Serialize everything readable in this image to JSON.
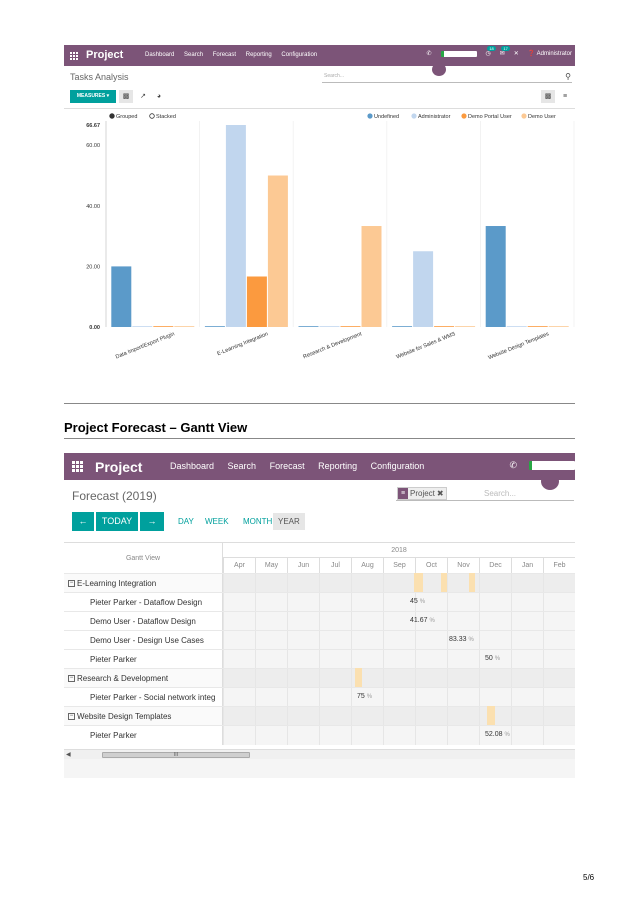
{
  "analysis": {
    "app_name": "Project",
    "nav": [
      "Dashboard",
      "Search",
      "Forecast",
      "Reporting",
      "Configuration"
    ],
    "user": "Administrator",
    "badge_a": "18",
    "badge_b": "17",
    "title": "Tasks Analysis",
    "search_placeholder": "Search...",
    "measures_label": "MEASURES ▾",
    "colors": {
      "nav": "#7c5478",
      "accent": "#00a09d"
    }
  },
  "chart_data": {
    "type": "bar",
    "categories": [
      "Data Import/Export Plugin",
      "E-Learning Integration",
      "Research & Development",
      "Website for Sales & WMS",
      "Website Design Templates"
    ],
    "series": [
      {
        "name": "Undefined",
        "color": "#5b9ac9",
        "values": [
          20,
          0,
          0,
          0,
          33.33
        ]
      },
      {
        "name": "Administrator",
        "color": "#c1d6ee",
        "values": [
          0,
          66.67,
          0,
          25,
          0
        ]
      },
      {
        "name": "Demo Portal User",
        "color": "#fb9a3f",
        "values": [
          0,
          16.67,
          0,
          0,
          0
        ]
      },
      {
        "name": "Demo User",
        "color": "#fcc994",
        "values": [
          0,
          50,
          33.33,
          0,
          0
        ]
      }
    ],
    "mode_options": [
      "Grouped",
      "Stacked"
    ],
    "selected_mode": "Grouped",
    "y_ticks": [
      "0.00",
      "20.00",
      "40.00",
      "60.00"
    ],
    "y_max_label": "66.67",
    "ylim": [
      0,
      66.67
    ],
    "legend_position": "top-right",
    "grid": true
  },
  "heading": "Project Forecast – Gantt View",
  "gantt": {
    "app_name": "Project",
    "nav": [
      "Dashboard",
      "Search",
      "Forecast",
      "Reporting",
      "Configuration"
    ],
    "title": "Forecast (2019)",
    "facet_label": "Project",
    "search_placeholder": "Search...",
    "prev_label": "←",
    "today_label": "TODAY",
    "next_label": "→",
    "scales": [
      "DAY",
      "WEEK",
      "MONTH",
      "YEAR"
    ],
    "active_scale": "YEAR",
    "header_label": "Gantt View",
    "year_label": "2018",
    "months": [
      "Apr",
      "May",
      "Jun",
      "Jul",
      "Aug",
      "Sep",
      "Oct",
      "Nov",
      "Dec",
      "Jan",
      "Feb"
    ],
    "rows": [
      {
        "label": "E-Learning Integration",
        "group": true,
        "toggle": "−"
      },
      {
        "label": "Pieter Parker - Dataflow Design",
        "group": false,
        "pct": "45",
        "month": 6
      },
      {
        "label": "Demo User - Dataflow Design",
        "group": false,
        "pct": "41.67",
        "month": 6
      },
      {
        "label": "Demo User - Design Use Cases",
        "group": false,
        "pct": "83.33",
        "month": 7
      },
      {
        "label": "Pieter Parker",
        "group": false,
        "pct": "50",
        "month": 8
      },
      {
        "label": "Research & Development",
        "group": true,
        "toggle": "−"
      },
      {
        "label": "Pieter Parker - Social network integ",
        "group": false,
        "pct": "75",
        "month": 4
      },
      {
        "label": "Website Design Templates",
        "group": true,
        "toggle": "−"
      },
      {
        "label": "Pieter Parker",
        "group": false,
        "pct": "52.08",
        "month": 8
      }
    ],
    "pct_sign": "%",
    "scroll_thumb": "III"
  },
  "page_number": "5/6"
}
